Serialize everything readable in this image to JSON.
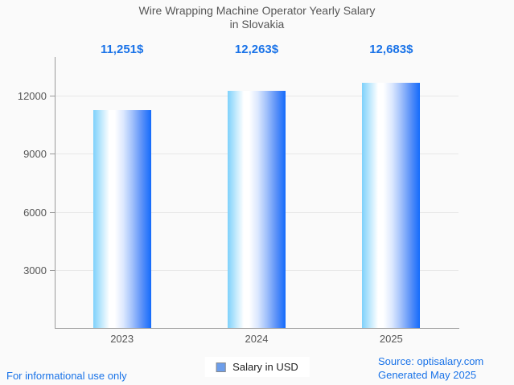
{
  "title": {
    "line1": "Wire Wrapping Machine Operator Yearly Salary",
    "line2": "in Slovakia"
  },
  "chart_data": {
    "type": "bar",
    "title": "Wire Wrapping Machine Operator Yearly Salary in Slovakia",
    "categories": [
      "2023",
      "2024",
      "2025"
    ],
    "values": [
      11251,
      12263,
      12683
    ],
    "value_labels": [
      "11,251$",
      "12,263$",
      "12,683$"
    ],
    "series": [
      {
        "name": "Salary in USD",
        "values": [
          11251,
          12263,
          12683
        ]
      }
    ],
    "yticks": [
      3000,
      6000,
      9000,
      12000
    ],
    "ylim": [
      0,
      14000
    ],
    "xlabel": "",
    "ylabel": "",
    "grid": true,
    "legend_position": "bottom"
  },
  "legend": {
    "label": "Salary in USD"
  },
  "footer": {
    "note": "For informational use only",
    "source": "Source: optisalary.com",
    "generated": "Generated May 2025"
  },
  "colors": {
    "accent_blue": "#1a73e8",
    "text_gray": "#565656",
    "bar_gradient_left": "#7ed1fb",
    "bar_gradient_mid": "#ffffff",
    "bar_gradient_right": "#146bfb",
    "legend_marker": "#6d9eeb",
    "background": "#fafafa"
  }
}
